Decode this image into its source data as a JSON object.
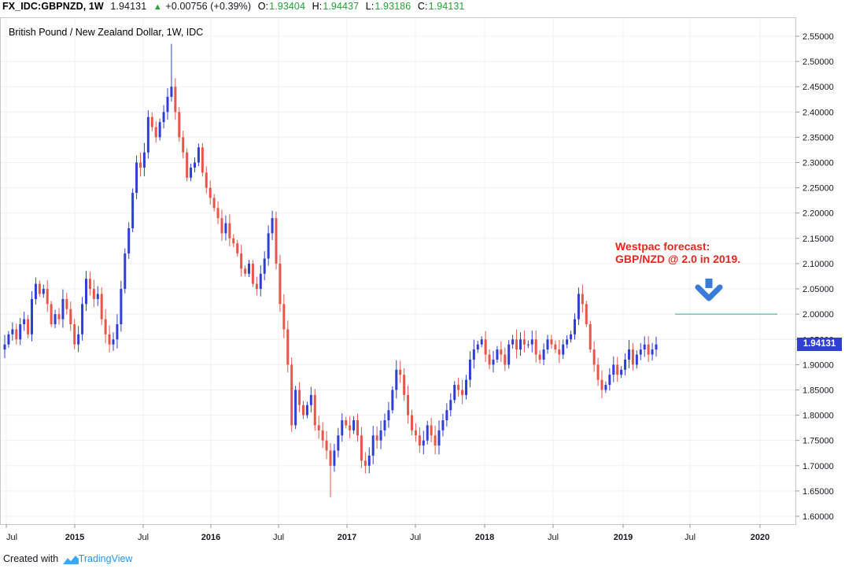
{
  "header": {
    "symbol": "FX_IDC:GBPNZD, 1W",
    "last": "1.94131",
    "change": "+0.00756 (+0.39%)",
    "open_label": "O:",
    "open": "1.93404",
    "high_label": "H:",
    "high": "1.94437",
    "low_label": "L:",
    "low": "1.93186",
    "close_label": "C:",
    "close": "1.94131"
  },
  "footer": {
    "created_with": "Created with",
    "brand": "TradingView"
  },
  "colors": {
    "up": "#2f3fd6",
    "down": "#e8564b",
    "forecast_text": "#e8261d",
    "arrow": "#3a7bd5",
    "target_line": "#2aa89a"
  },
  "chart_data": {
    "type": "candlestick",
    "title": "British Pound / New Zealand Dollar, 1W, IDC",
    "ylim": [
      1.58,
      2.57
    ],
    "y_ticks": [
      "1.60000",
      "1.65000",
      "1.70000",
      "1.75000",
      "1.80000",
      "1.85000",
      "1.90000",
      "1.95000",
      "2.00000",
      "2.05000",
      "2.10000",
      "2.15000",
      "2.20000",
      "2.25000",
      "2.30000",
      "2.35000",
      "2.40000",
      "2.45000",
      "2.50000",
      "2.55000"
    ],
    "x_ticks": [
      "Jul",
      "2015",
      "Jul",
      "2016",
      "Jul",
      "2017",
      "Jul",
      "2018",
      "Jul",
      "2019",
      "Jul",
      "2020"
    ],
    "last_price": "1.94131",
    "target_level": 2.0,
    "annotation": {
      "line1": "Westpac forecast:",
      "line2": "GBP/NZD @ 2.0 in 2019."
    },
    "closes": [
      1.94,
      1.96,
      1.97,
      1.95,
      1.98,
      1.99,
      1.96,
      2.03,
      2.06,
      2.04,
      2.05,
      2.02,
      1.98,
      2.0,
      1.99,
      2.03,
      2.01,
      1.98,
      1.94,
      1.96,
      2.02,
      2.07,
      2.05,
      2.03,
      2.04,
      1.99,
      1.96,
      1.94,
      1.95,
      1.98,
      2.05,
      2.12,
      2.17,
      2.24,
      2.3,
      2.29,
      2.32,
      2.39,
      2.37,
      2.35,
      2.38,
      2.4,
      2.43,
      2.45,
      2.4,
      2.35,
      2.32,
      2.27,
      2.29,
      2.3,
      2.33,
      2.28,
      2.25,
      2.23,
      2.21,
      2.19,
      2.16,
      2.18,
      2.15,
      2.14,
      2.12,
      2.09,
      2.08,
      2.1,
      2.06,
      2.05,
      2.08,
      2.11,
      2.16,
      2.19,
      2.1,
      2.02,
      1.97,
      1.9,
      1.78,
      1.85,
      1.82,
      1.8,
      1.82,
      1.84,
      1.78,
      1.77,
      1.75,
      1.73,
      1.7,
      1.73,
      1.76,
      1.79,
      1.78,
      1.77,
      1.79,
      1.76,
      1.71,
      1.7,
      1.72,
      1.76,
      1.75,
      1.77,
      1.79,
      1.81,
      1.85,
      1.89,
      1.88,
      1.84,
      1.8,
      1.77,
      1.76,
      1.74,
      1.75,
      1.78,
      1.76,
      1.74,
      1.77,
      1.79,
      1.81,
      1.83,
      1.86,
      1.85,
      1.84,
      1.87,
      1.91,
      1.93,
      1.94,
      1.95,
      1.92,
      1.9,
      1.91,
      1.93,
      1.92,
      1.9,
      1.94,
      1.95,
      1.93,
      1.95,
      1.94,
      1.94,
      1.95,
      1.92,
      1.91,
      1.93,
      1.95,
      1.94,
      1.93,
      1.92,
      1.94,
      1.95,
      1.96,
      1.99,
      2.04,
      2.02,
      1.98,
      1.93,
      1.9,
      1.87,
      1.85,
      1.86,
      1.88,
      1.9,
      1.88,
      1.89,
      1.91,
      1.93,
      1.9,
      1.92,
      1.93,
      1.94,
      1.92,
      1.93,
      1.94
    ]
  }
}
